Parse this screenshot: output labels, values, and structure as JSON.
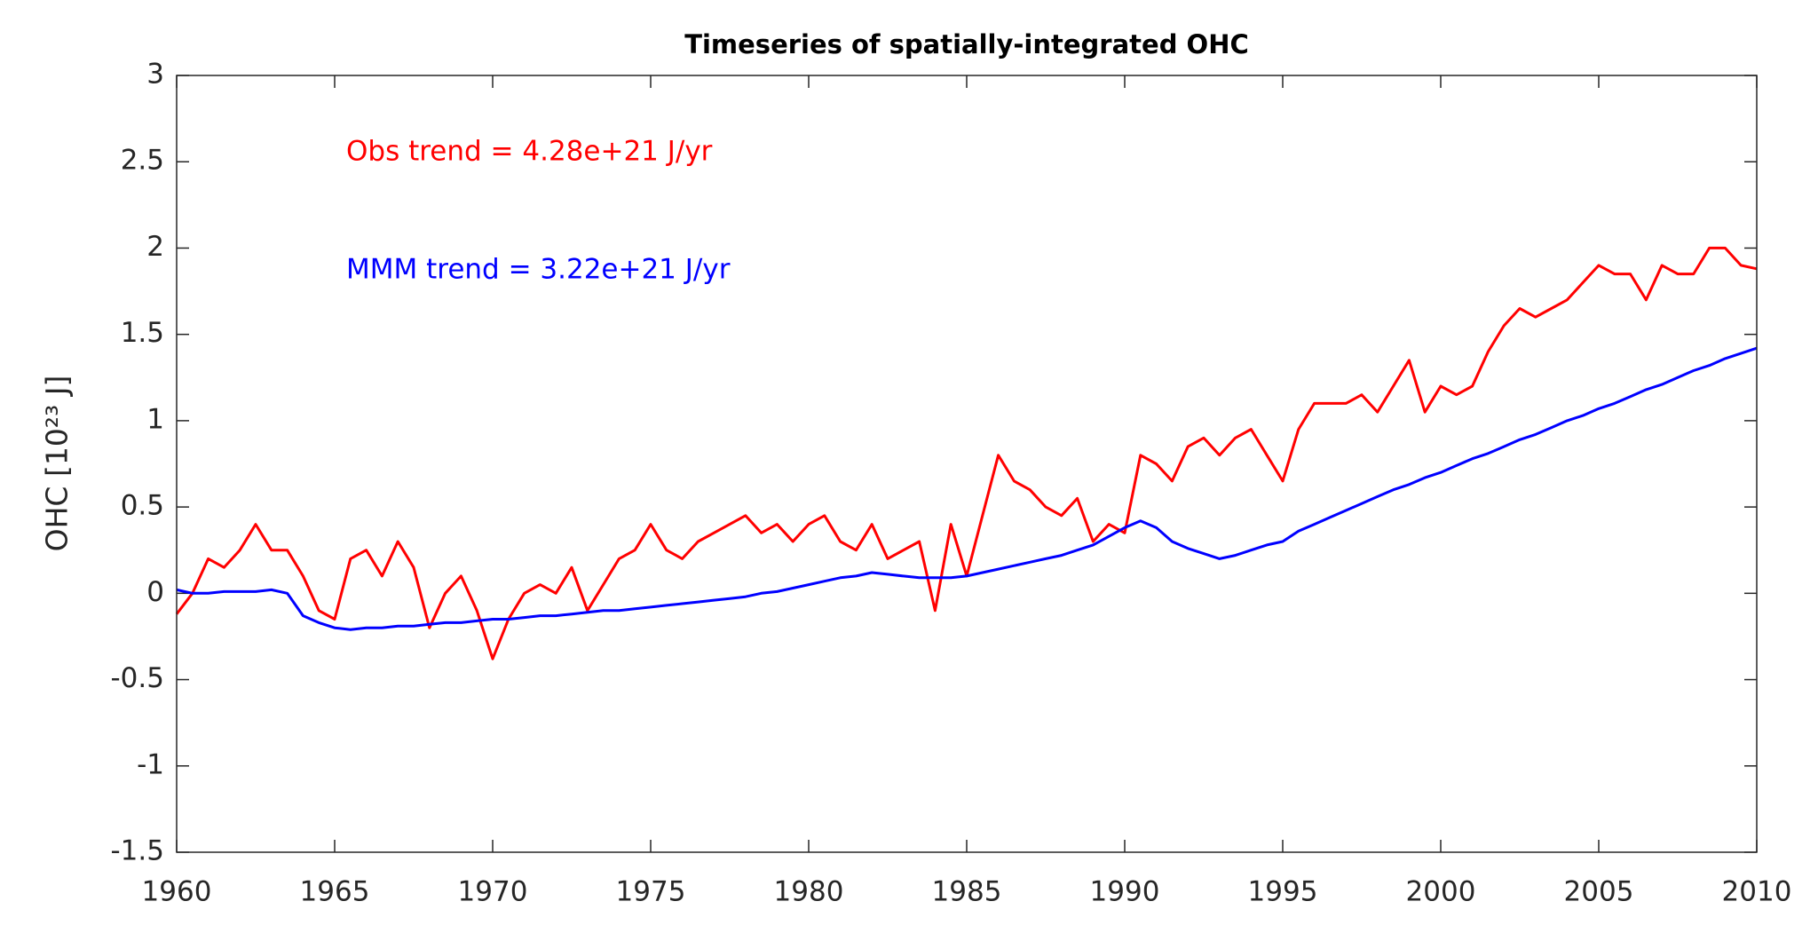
{
  "chart_data": {
    "type": "line",
    "title": "Timeseries of spatially-integrated OHC",
    "ylabel": "OHC [10²³ J]",
    "annotations": [
      {
        "text": "Obs trend = 4.28e+21 J/yr",
        "color": "#ff0000"
      },
      {
        "text": "MMM trend = 3.22e+21 J/yr",
        "color": "#0000ff"
      }
    ],
    "x": [
      1960,
      1960.5,
      1961,
      1961.5,
      1962,
      1962.5,
      1963,
      1963.5,
      1964,
      1964.5,
      1965,
      1965.5,
      1966,
      1966.5,
      1967,
      1967.5,
      1968,
      1968.5,
      1969,
      1969.5,
      1970,
      1970.5,
      1971,
      1971.5,
      1972,
      1972.5,
      1973,
      1973.5,
      1974,
      1974.5,
      1975,
      1975.5,
      1976,
      1976.5,
      1977,
      1977.5,
      1978,
      1978.5,
      1979,
      1979.5,
      1980,
      1980.5,
      1981,
      1981.5,
      1982,
      1982.5,
      1983,
      1983.5,
      1984,
      1984.5,
      1985,
      1985.5,
      1986,
      1986.5,
      1987,
      1987.5,
      1988,
      1988.5,
      1989,
      1989.5,
      1990,
      1990.5,
      1991,
      1991.5,
      1992,
      1992.5,
      1993,
      1993.5,
      1994,
      1994.5,
      1995,
      1995.5,
      1996,
      1996.5,
      1997,
      1997.5,
      1998,
      1998.5,
      1999,
      1999.5,
      2000,
      2000.5,
      2001,
      2001.5,
      2002,
      2002.5,
      2003,
      2003.5,
      2004,
      2004.5,
      2005,
      2005.5,
      2006,
      2006.5,
      2007,
      2007.5,
      2008,
      2008.5,
      2009,
      2009.5,
      2010
    ],
    "series": [
      {
        "name": "Obs",
        "color": "#ff0000",
        "values": [
          -0.12,
          0.0,
          0.2,
          0.15,
          0.25,
          0.4,
          0.25,
          0.25,
          0.1,
          -0.1,
          -0.15,
          0.2,
          0.25,
          0.1,
          0.3,
          0.15,
          -0.2,
          0.0,
          0.1,
          -0.1,
          -0.38,
          -0.15,
          0.0,
          0.05,
          0.0,
          0.15,
          -0.1,
          0.05,
          0.2,
          0.25,
          0.4,
          0.25,
          0.2,
          0.3,
          0.35,
          0.4,
          0.45,
          0.35,
          0.4,
          0.3,
          0.4,
          0.45,
          0.3,
          0.25,
          0.4,
          0.2,
          0.25,
          0.3,
          -0.1,
          0.4,
          0.1,
          0.45,
          0.8,
          0.65,
          0.6,
          0.5,
          0.45,
          0.55,
          0.3,
          0.4,
          0.35,
          0.8,
          0.75,
          0.65,
          0.85,
          0.9,
          0.8,
          0.9,
          0.95,
          0.8,
          0.65,
          0.95,
          1.1,
          1.1,
          1.1,
          1.15,
          1.05,
          1.2,
          1.35,
          1.05,
          1.2,
          1.15,
          1.2,
          1.4,
          1.55,
          1.65,
          1.6,
          1.65,
          1.7,
          1.8,
          1.9,
          1.85,
          1.85,
          1.7,
          1.9,
          1.85,
          1.85,
          2.0,
          2.0,
          1.9,
          1.88
        ]
      },
      {
        "name": "MMM",
        "color": "#0000ff",
        "values": [
          0.02,
          0.0,
          0.0,
          0.01,
          0.01,
          0.01,
          0.02,
          0.0,
          -0.13,
          -0.17,
          -0.2,
          -0.21,
          -0.2,
          -0.2,
          -0.19,
          -0.19,
          -0.18,
          -0.17,
          -0.17,
          -0.16,
          -0.15,
          -0.15,
          -0.14,
          -0.13,
          -0.13,
          -0.12,
          -0.11,
          -0.1,
          -0.1,
          -0.09,
          -0.08,
          -0.07,
          -0.06,
          -0.05,
          -0.04,
          -0.03,
          -0.02,
          0.0,
          0.01,
          0.03,
          0.05,
          0.07,
          0.09,
          0.1,
          0.12,
          0.11,
          0.1,
          0.09,
          0.09,
          0.09,
          0.1,
          0.12,
          0.14,
          0.16,
          0.18,
          0.2,
          0.22,
          0.25,
          0.28,
          0.33,
          0.38,
          0.42,
          0.38,
          0.3,
          0.26,
          0.23,
          0.2,
          0.22,
          0.25,
          0.28,
          0.3,
          0.36,
          0.4,
          0.44,
          0.48,
          0.52,
          0.56,
          0.6,
          0.63,
          0.67,
          0.7,
          0.74,
          0.78,
          0.81,
          0.85,
          0.89,
          0.92,
          0.96,
          1.0,
          1.03,
          1.07,
          1.1,
          1.14,
          1.18,
          1.21,
          1.25,
          1.29,
          1.32,
          1.36,
          1.39,
          1.42
        ]
      }
    ],
    "xlim": [
      1960,
      2010
    ],
    "xticks": [
      1960,
      1965,
      1970,
      1975,
      1980,
      1985,
      1990,
      1995,
      2000,
      2005,
      2010
    ],
    "ylim": [
      -1.5,
      3
    ],
    "yticks": [
      -1.5,
      -1,
      -0.5,
      0,
      0.5,
      1,
      1.5,
      2,
      2.5,
      3
    ],
    "grid": false
  }
}
